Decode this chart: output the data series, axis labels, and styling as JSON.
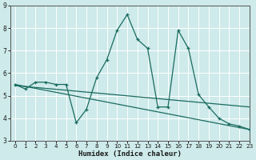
{
  "title": "",
  "xlabel": "Humidex (Indice chaleur)",
  "bg_color": "#ceeaea",
  "grid_color": "#b8d8d8",
  "line_color": "#1a6b60",
  "xlim": [
    -0.5,
    23
  ],
  "ylim": [
    3,
    9
  ],
  "xticks": [
    0,
    1,
    2,
    3,
    4,
    5,
    6,
    7,
    8,
    9,
    10,
    11,
    12,
    13,
    14,
    15,
    16,
    17,
    18,
    19,
    20,
    21,
    22,
    23
  ],
  "yticks": [
    3,
    4,
    5,
    6,
    7,
    8,
    9
  ],
  "series0_x": [
    0,
    1,
    2,
    3,
    4,
    5,
    6,
    7,
    8,
    9,
    10,
    11,
    12,
    13,
    14,
    15,
    16,
    17,
    18,
    19,
    20,
    21,
    22,
    23
  ],
  "series0_y": [
    5.5,
    5.3,
    5.6,
    5.6,
    5.5,
    5.5,
    3.8,
    4.4,
    5.8,
    6.6,
    7.9,
    8.6,
    7.5,
    7.1,
    4.5,
    4.5,
    7.9,
    7.1,
    5.05,
    4.5,
    4.0,
    3.75,
    3.65,
    3.5
  ],
  "series1_x": [
    0,
    23
  ],
  "series1_y": [
    5.5,
    3.5
  ],
  "series2_x": [
    0,
    23
  ],
  "series2_y": [
    5.45,
    4.5
  ]
}
